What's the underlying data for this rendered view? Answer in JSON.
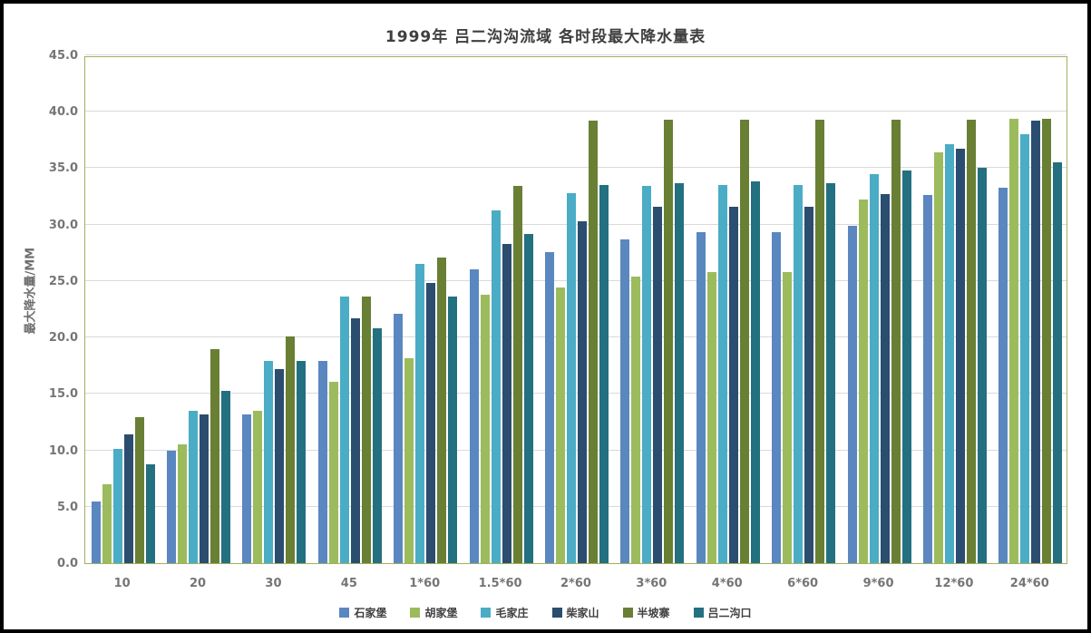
{
  "title": "1999年  吕二沟沟流域  各时段最大降水量表",
  "chart_data": {
    "type": "bar",
    "title": "1999年  吕二沟沟流域  各时段最大降水量表",
    "xlabel": "",
    "ylabel": "最大降水量/MM",
    "ylim": [
      0,
      45
    ],
    "ytick_step": 5,
    "ytick_labels": [
      "0.0",
      "5.0",
      "10.0",
      "15.0",
      "20.0",
      "25.0",
      "30.0",
      "35.0",
      "40.0",
      "45.0"
    ],
    "grid": true,
    "legend_position": "bottom",
    "categories": [
      "10",
      "20",
      "30",
      "45",
      "1*60",
      "1.5*60",
      "2*60",
      "3*60",
      "4*60",
      "6*60",
      "9*60",
      "12*60",
      "24*60"
    ],
    "series": [
      {
        "name": "石家堡",
        "color": "#5a87c0",
        "values": [
          5.5,
          10.0,
          13.2,
          17.9,
          22.1,
          26.0,
          27.6,
          28.7,
          29.3,
          29.3,
          29.9,
          32.6,
          33.3
        ]
      },
      {
        "name": "胡家堡",
        "color": "#9cbb5d",
        "values": [
          7.0,
          10.5,
          13.5,
          16.1,
          18.2,
          23.8,
          24.4,
          25.4,
          25.8,
          25.8,
          32.2,
          36.4,
          39.4
        ]
      },
      {
        "name": "毛家庄",
        "color": "#4bacc6",
        "values": [
          10.1,
          13.5,
          17.9,
          23.6,
          26.5,
          31.3,
          32.8,
          33.4,
          33.5,
          33.5,
          34.5,
          37.1,
          38.0
        ]
      },
      {
        "name": "柴家山",
        "color": "#2b4d6f",
        "values": [
          11.4,
          13.2,
          17.2,
          21.7,
          24.8,
          28.3,
          30.3,
          31.6,
          31.6,
          31.6,
          32.7,
          36.7,
          39.2
        ]
      },
      {
        "name": "半坡寨",
        "color": "#697f34",
        "values": [
          12.9,
          19.0,
          20.1,
          23.6,
          27.1,
          33.4,
          39.2,
          39.3,
          39.3,
          39.3,
          39.3,
          39.3,
          39.4
        ]
      },
      {
        "name": "吕二沟口",
        "color": "#237080",
        "values": [
          8.8,
          15.3,
          17.9,
          20.8,
          23.6,
          29.2,
          33.5,
          33.7,
          33.8,
          33.7,
          34.8,
          35.0,
          35.5
        ]
      }
    ],
    "colors": {
      "plot_border": "#a2b05f",
      "gridline": "#d9d9d9",
      "axis_text": "#757575",
      "title_text": "#3f3f3f"
    }
  }
}
